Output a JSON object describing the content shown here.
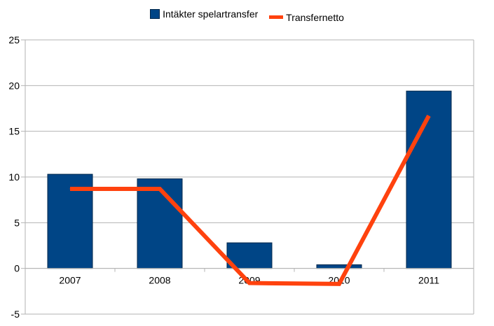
{
  "chart_data": {
    "type": "bar",
    "categories": [
      "2007",
      "2008",
      "2009",
      "2010",
      "2011"
    ],
    "series": [
      {
        "name": "Intäkter spelartransfer",
        "kind": "bar",
        "color": "#004586",
        "values": [
          10.3,
          9.8,
          2.8,
          0.4,
          19.4
        ]
      },
      {
        "name": "Transfernetto",
        "kind": "line",
        "color": "#ff420e",
        "values": [
          8.7,
          8.7,
          -1.6,
          -1.7,
          16.7
        ]
      }
    ],
    "ylim": [
      -5,
      25
    ],
    "yticks": [
      -5,
      0,
      5,
      10,
      15,
      20,
      25
    ],
    "grid": true,
    "legend_position": "top"
  }
}
